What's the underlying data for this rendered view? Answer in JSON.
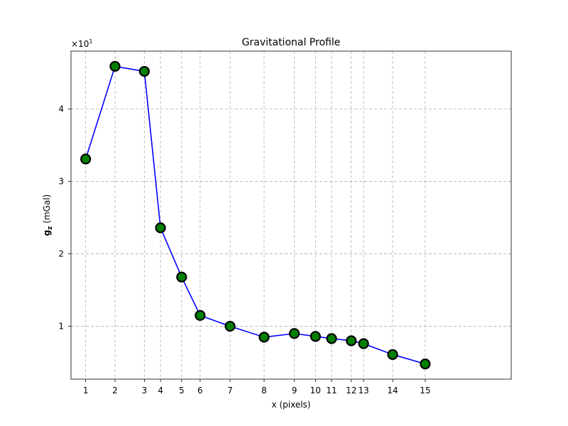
{
  "chart_data": {
    "type": "line",
    "title": "Gravitational Profile",
    "xlabel": "x (pixels)",
    "ylabel_bold": "g",
    "ylabel_bold_sub": "z",
    "ylabel_rest": " (mGal)",
    "y_multiplier_base": "×10",
    "y_multiplier_exp": "1",
    "xlim": [
      0.5,
      15.5
    ],
    "ylim": [
      0.27,
      4.8
    ],
    "x": [
      1,
      2,
      3,
      4,
      5,
      6,
      7,
      8,
      9,
      10,
      11,
      12,
      13,
      14,
      15
    ],
    "x_positions": [
      1,
      2,
      3,
      3.55,
      4.27,
      4.9,
      5.92,
      7.08,
      8.11,
      8.83,
      9.38,
      10.05,
      10.47,
      11.46,
      12.57
    ],
    "x_tick_labels": [
      "1",
      "2",
      "3",
      "4",
      "5",
      "6",
      "7",
      "8",
      "9",
      "10",
      "11",
      "12",
      "13",
      "14",
      "15"
    ],
    "y_ticks": [
      1,
      2,
      3,
      4
    ],
    "y_tick_labels": [
      "1",
      "2",
      "3",
      "4"
    ],
    "series": [
      {
        "values": [
          3.31,
          4.59,
          4.52,
          2.36,
          1.68,
          1.15,
          1.0,
          0.85,
          0.9,
          0.86,
          0.83,
          0.8,
          0.76,
          0.61,
          0.48
        ]
      }
    ],
    "grid": true,
    "colors": {
      "line": "#0000ff",
      "marker_fill": "#008000",
      "marker_edge": "#000000",
      "grid": "#b0b0b0"
    }
  }
}
